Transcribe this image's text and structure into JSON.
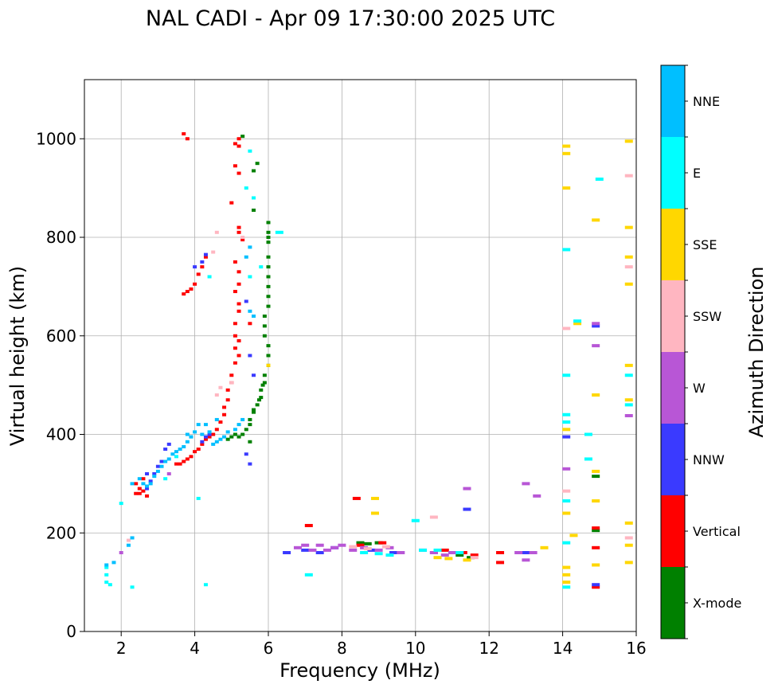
{
  "chart_data": {
    "type": "scatter",
    "title": "NAL CADI - Apr 09 17:30:00 2025 UTC",
    "xlabel": "Frequency (MHz)",
    "ylabel": "Virtual height (km)",
    "xlim": [
      1,
      16
    ],
    "ylim": [
      0,
      1120
    ],
    "xticks": [
      2,
      4,
      6,
      8,
      10,
      12,
      14,
      16
    ],
    "yticks": [
      0,
      200,
      400,
      600,
      800,
      1000
    ],
    "grid": true,
    "colorbar": {
      "label": "Azimuth Direction",
      "placement": "right",
      "categories": [
        {
          "name": "X-mode",
          "color": "#008000"
        },
        {
          "name": "Vertical",
          "color": "#ff0000"
        },
        {
          "name": "NNW",
          "color": "#3a3aff"
        },
        {
          "name": "W",
          "color": "#b856d6"
        },
        {
          "name": "SSW",
          "color": "#ffb6c1"
        },
        {
          "name": "SSE",
          "color": "#ffd700"
        },
        {
          "name": "E",
          "color": "#00ffff"
        },
        {
          "name": "NNE",
          "color": "#00bfff"
        }
      ]
    },
    "series": [
      {
        "name": "X-mode",
        "color": "#008000",
        "points": [
          [
            5.3,
            1005
          ],
          [
            5.7,
            950
          ],
          [
            5.6,
            935
          ],
          [
            5.6,
            855
          ],
          [
            6.0,
            830
          ],
          [
            6.0,
            810
          ],
          [
            6.0,
            800
          ],
          [
            6.0,
            790
          ],
          [
            6.0,
            760
          ],
          [
            6.0,
            740
          ],
          [
            6.0,
            720
          ],
          [
            6.0,
            700
          ],
          [
            6.0,
            680
          ],
          [
            6.0,
            660
          ],
          [
            5.9,
            640
          ],
          [
            5.9,
            620
          ],
          [
            5.9,
            600
          ],
          [
            6.0,
            580
          ],
          [
            6.0,
            560
          ],
          [
            6.0,
            540
          ],
          [
            5.9,
            520
          ],
          [
            5.9,
            505
          ],
          [
            5.8,
            490
          ],
          [
            5.8,
            475
          ],
          [
            5.7,
            460
          ],
          [
            5.6,
            445
          ],
          [
            5.5,
            430
          ],
          [
            5.5,
            420
          ],
          [
            5.4,
            410
          ],
          [
            5.3,
            400
          ],
          [
            5.2,
            395
          ],
          [
            5.1,
            400
          ],
          [
            5.0,
            395
          ],
          [
            4.9,
            390
          ],
          [
            5.5,
            385
          ],
          [
            5.6,
            450
          ],
          [
            5.75,
            470
          ],
          [
            5.85,
            500
          ],
          [
            8.5,
            180
          ],
          [
            8.7,
            178
          ],
          [
            9.0,
            180
          ],
          [
            11.2,
            155
          ],
          [
            11.5,
            150
          ],
          [
            14.9,
            205
          ],
          [
            14.9,
            315
          ]
        ]
      },
      {
        "name": "Vertical",
        "color": "#ff0000",
        "points": [
          [
            3.7,
            1010
          ],
          [
            3.8,
            1000
          ],
          [
            5.2,
            1000
          ],
          [
            5.1,
            990
          ],
          [
            5.2,
            985
          ],
          [
            5.1,
            945
          ],
          [
            5.2,
            930
          ],
          [
            5.0,
            870
          ],
          [
            5.2,
            820
          ],
          [
            5.2,
            810
          ],
          [
            5.3,
            795
          ],
          [
            5.1,
            750
          ],
          [
            5.2,
            730
          ],
          [
            5.2,
            705
          ],
          [
            5.1,
            690
          ],
          [
            5.2,
            665
          ],
          [
            5.2,
            650
          ],
          [
            5.1,
            625
          ],
          [
            5.1,
            600
          ],
          [
            5.2,
            590
          ],
          [
            5.1,
            575
          ],
          [
            5.2,
            560
          ],
          [
            5.1,
            545
          ],
          [
            5.0,
            520
          ],
          [
            5.0,
            505
          ],
          [
            4.9,
            490
          ],
          [
            4.9,
            470
          ],
          [
            4.8,
            455
          ],
          [
            4.8,
            440
          ],
          [
            4.7,
            425
          ],
          [
            4.6,
            410
          ],
          [
            4.5,
            400
          ],
          [
            4.4,
            395
          ],
          [
            4.3,
            390
          ],
          [
            4.2,
            380
          ],
          [
            4.1,
            370
          ],
          [
            4.0,
            365
          ],
          [
            3.9,
            355
          ],
          [
            3.8,
            350
          ],
          [
            3.7,
            345
          ],
          [
            3.6,
            340
          ],
          [
            3.5,
            340
          ],
          [
            4.3,
            760
          ],
          [
            4.2,
            740
          ],
          [
            4.1,
            725
          ],
          [
            4.0,
            705
          ],
          [
            3.9,
            695
          ],
          [
            3.8,
            690
          ],
          [
            3.7,
            685
          ],
          [
            2.5,
            290
          ],
          [
            2.6,
            285
          ],
          [
            2.4,
            280
          ],
          [
            2.7,
            275
          ],
          [
            2.6,
            310
          ],
          [
            2.4,
            300
          ],
          [
            2.5,
            280
          ],
          [
            5.5,
            625
          ],
          [
            7.1,
            215
          ],
          [
            8.4,
            270
          ],
          [
            8.5,
            175
          ],
          [
            9.1,
            180
          ],
          [
            10.8,
            165
          ],
          [
            12.3,
            160
          ],
          [
            12.3,
            140
          ],
          [
            14.9,
            210
          ],
          [
            14.9,
            170
          ],
          [
            14.9,
            90
          ],
          [
            11.3,
            160
          ],
          [
            11.6,
            155
          ]
        ]
      },
      {
        "name": "NNW",
        "color": "#3a3aff",
        "points": [
          [
            5.4,
            360
          ],
          [
            5.5,
            340
          ],
          [
            4.4,
            400
          ],
          [
            4.3,
            395
          ],
          [
            4.2,
            385
          ],
          [
            3.3,
            380
          ],
          [
            3.2,
            370
          ],
          [
            3.1,
            345
          ],
          [
            3.0,
            335
          ],
          [
            2.9,
            320
          ],
          [
            2.8,
            305
          ],
          [
            2.7,
            290
          ],
          [
            4.3,
            765
          ],
          [
            4.2,
            750
          ],
          [
            4.0,
            740
          ],
          [
            5.6,
            520
          ],
          [
            5.5,
            560
          ],
          [
            5.4,
            670
          ],
          [
            6.5,
            160
          ],
          [
            7.0,
            165
          ],
          [
            7.4,
            160
          ],
          [
            7.8,
            170
          ],
          [
            8.8,
            165
          ],
          [
            9.4,
            160
          ],
          [
            10.5,
            160
          ],
          [
            13.0,
            160
          ],
          [
            14.1,
            395
          ],
          [
            14.9,
            620
          ],
          [
            14.9,
            95
          ],
          [
            11.4,
            248
          ],
          [
            2.7,
            320
          ]
        ]
      },
      {
        "name": "W",
        "color": "#b856d6",
        "points": [
          [
            6.8,
            170
          ],
          [
            7.0,
            175
          ],
          [
            7.2,
            165
          ],
          [
            7.4,
            175
          ],
          [
            7.6,
            165
          ],
          [
            7.8,
            170
          ],
          [
            8.0,
            175
          ],
          [
            8.3,
            165
          ],
          [
            8.6,
            170
          ],
          [
            9.0,
            165
          ],
          [
            9.3,
            170
          ],
          [
            9.6,
            160
          ],
          [
            10.2,
            165
          ],
          [
            10.5,
            160
          ],
          [
            10.8,
            155
          ],
          [
            11.0,
            160
          ],
          [
            12.8,
            160
          ],
          [
            13.2,
            160
          ],
          [
            13.0,
            145
          ],
          [
            13.0,
            300
          ],
          [
            13.3,
            275
          ],
          [
            14.9,
            625
          ],
          [
            14.9,
            580
          ],
          [
            14.1,
            330
          ],
          [
            15.8,
            438
          ],
          [
            11.4,
            290
          ],
          [
            2.0,
            160
          ],
          [
            3.3,
            320
          ]
        ]
      },
      {
        "name": "SSW",
        "color": "#ffb6c1",
        "points": [
          [
            4.6,
            810
          ],
          [
            4.5,
            770
          ],
          [
            5.3,
            800
          ],
          [
            5.0,
            505
          ],
          [
            4.7,
            495
          ],
          [
            4.6,
            480
          ],
          [
            8.3,
            172
          ],
          [
            8.7,
            168
          ],
          [
            9.2,
            172
          ],
          [
            10.5,
            232
          ],
          [
            11.6,
            150
          ],
          [
            14.1,
            285
          ],
          [
            14.1,
            240
          ],
          [
            14.1,
            615
          ],
          [
            15.8,
            925
          ],
          [
            15.8,
            740
          ],
          [
            15.8,
            190
          ],
          [
            2.2,
            185
          ]
        ]
      },
      {
        "name": "SSE",
        "color": "#ffd700",
        "points": [
          [
            6.0,
            540
          ],
          [
            8.9,
            240
          ],
          [
            8.9,
            270
          ],
          [
            10.6,
            150
          ],
          [
            10.9,
            148
          ],
          [
            11.4,
            145
          ],
          [
            13.5,
            170
          ],
          [
            14.1,
            985
          ],
          [
            14.1,
            970
          ],
          [
            14.1,
            900
          ],
          [
            14.1,
            410
          ],
          [
            14.1,
            240
          ],
          [
            14.1,
            130
          ],
          [
            14.1,
            115
          ],
          [
            14.1,
            100
          ],
          [
            14.4,
            625
          ],
          [
            14.3,
            195
          ],
          [
            14.9,
            835
          ],
          [
            14.9,
            480
          ],
          [
            14.9,
            325
          ],
          [
            14.9,
            265
          ],
          [
            14.9,
            135
          ],
          [
            15.8,
            820
          ],
          [
            15.8,
            760
          ],
          [
            15.8,
            705
          ],
          [
            15.8,
            540
          ],
          [
            15.8,
            470
          ],
          [
            15.8,
            220
          ],
          [
            15.8,
            175
          ],
          [
            15.8,
            140
          ],
          [
            15.8,
            995
          ]
        ]
      },
      {
        "name": "E",
        "color": "#00ffff",
        "points": [
          [
            5.5,
            975
          ],
          [
            5.4,
            900
          ],
          [
            5.6,
            880
          ],
          [
            6.3,
            810
          ],
          [
            5.8,
            740
          ],
          [
            5.5,
            720
          ],
          [
            4.1,
            270
          ],
          [
            4.3,
            95
          ],
          [
            1.6,
            130
          ],
          [
            1.6,
            115
          ],
          [
            1.6,
            100
          ],
          [
            1.7,
            95
          ],
          [
            2.3,
            90
          ],
          [
            2.0,
            260
          ],
          [
            4.4,
            720
          ],
          [
            7.1,
            115
          ],
          [
            8.6,
            160
          ],
          [
            9.0,
            158
          ],
          [
            9.3,
            155
          ],
          [
            10.0,
            225
          ],
          [
            10.2,
            165
          ],
          [
            10.6,
            165
          ],
          [
            11.2,
            160
          ],
          [
            14.1,
            775
          ],
          [
            14.1,
            520
          ],
          [
            14.1,
            440
          ],
          [
            14.1,
            425
          ],
          [
            14.1,
            265
          ],
          [
            14.1,
            180
          ],
          [
            14.1,
            90
          ],
          [
            14.4,
            630
          ],
          [
            14.7,
            400
          ],
          [
            14.7,
            350
          ],
          [
            15.0,
            918
          ],
          [
            15.8,
            520
          ],
          [
            15.8,
            460
          ],
          [
            3.5,
            355
          ],
          [
            3.2,
            310
          ],
          [
            3.9,
            395
          ]
        ]
      },
      {
        "name": "NNE",
        "color": "#00bfff",
        "points": [
          [
            5.5,
            650
          ],
          [
            5.6,
            640
          ],
          [
            5.5,
            780
          ],
          [
            5.4,
            760
          ],
          [
            5.3,
            430
          ],
          [
            5.2,
            420
          ],
          [
            5.1,
            410
          ],
          [
            4.9,
            405
          ],
          [
            4.8,
            395
          ],
          [
            4.7,
            390
          ],
          [
            4.6,
            385
          ],
          [
            4.5,
            380
          ],
          [
            4.2,
            400
          ],
          [
            4.0,
            405
          ],
          [
            3.9,
            395
          ],
          [
            3.8,
            385
          ],
          [
            3.7,
            375
          ],
          [
            3.6,
            370
          ],
          [
            3.5,
            365
          ],
          [
            3.4,
            360
          ],
          [
            3.3,
            350
          ],
          [
            3.2,
            345
          ],
          [
            3.1,
            335
          ],
          [
            3.0,
            325
          ],
          [
            2.9,
            315
          ],
          [
            2.8,
            300
          ],
          [
            2.7,
            295
          ],
          [
            2.6,
            300
          ],
          [
            2.5,
            310
          ],
          [
            2.3,
            300
          ],
          [
            4.1,
            420
          ],
          [
            4.3,
            420
          ],
          [
            4.6,
            430
          ],
          [
            1.8,
            140
          ],
          [
            1.6,
            135
          ],
          [
            2.2,
            175
          ],
          [
            2.3,
            190
          ],
          [
            3.8,
            400
          ],
          [
            4.4,
            405
          ]
        ]
      }
    ]
  }
}
